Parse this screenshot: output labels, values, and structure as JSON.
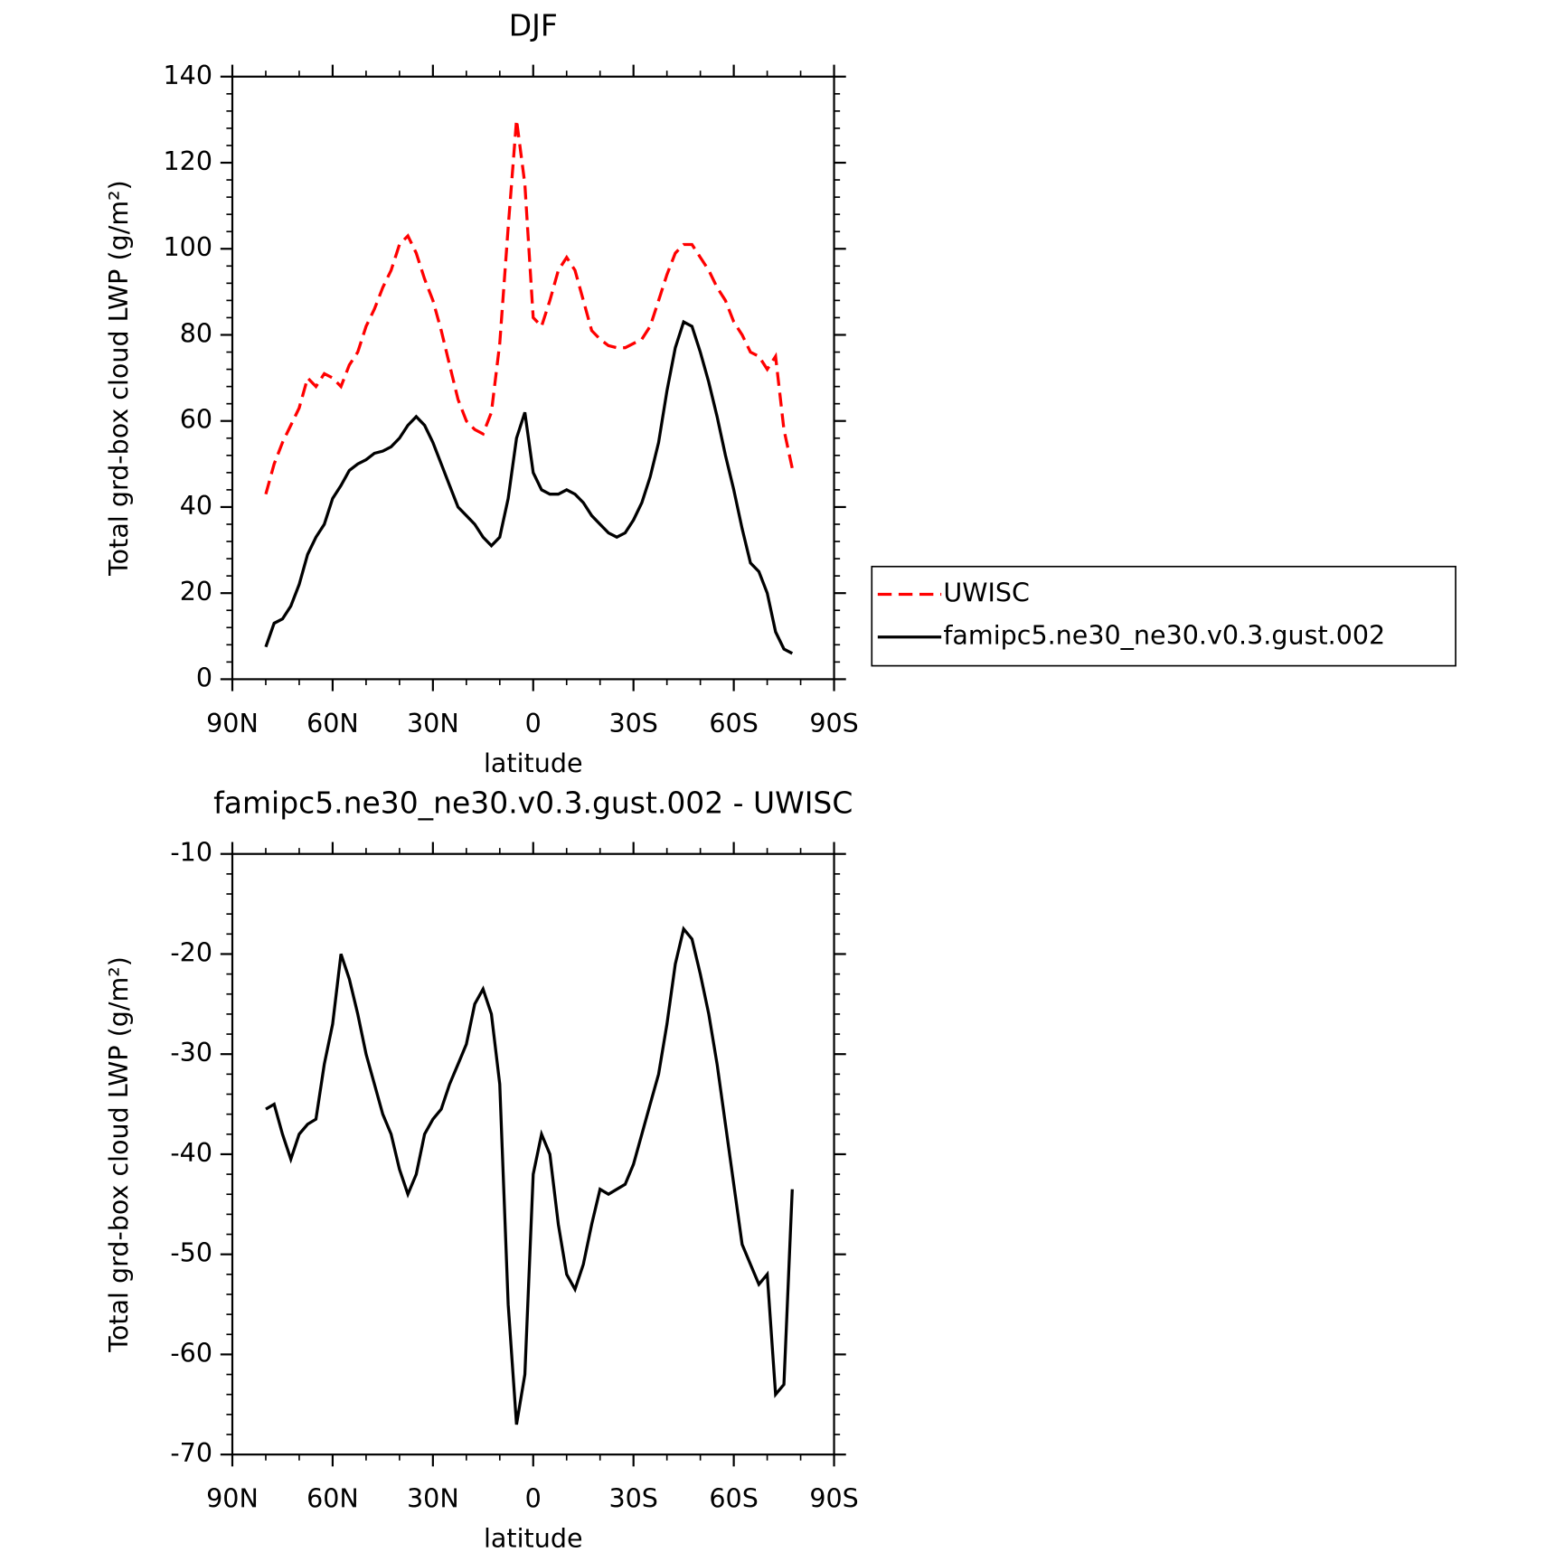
{
  "chart_data": [
    {
      "type": "line",
      "title": "DJF",
      "xlabel": "latitude",
      "ylabel": "Total grd-box cloud LWP (g/m²)",
      "x": [
        80,
        77.5,
        75,
        72.5,
        70,
        67.5,
        65,
        62.5,
        60,
        57.5,
        55,
        52.5,
        50,
        47.5,
        45,
        42.5,
        40,
        37.5,
        35,
        32.5,
        30,
        27.5,
        25,
        22.5,
        20,
        17.5,
        15,
        12.5,
        10,
        7.5,
        5,
        2.5,
        0,
        -2.5,
        -5,
        -7.5,
        -10,
        -12.5,
        -15,
        -17.5,
        -20,
        -22.5,
        -25,
        -27.5,
        -30,
        -32.5,
        -35,
        -37.5,
        -40,
        -42.5,
        -45,
        -47.5,
        -50,
        -52.5,
        -55,
        -57.5,
        -60,
        -62.5,
        -65,
        -67.5,
        -70,
        -72.5,
        -75,
        -77.5
      ],
      "series": [
        {
          "name": "UWISC",
          "color": "#ff0000",
          "linestyle": "dashed",
          "values": [
            43,
            50,
            55,
            59,
            63,
            70,
            68,
            71,
            70,
            68,
            73,
            76,
            82,
            86,
            91,
            95,
            101,
            103,
            99,
            93,
            88,
            81,
            73,
            65,
            60,
            58,
            57,
            62,
            78,
            105,
            130,
            115,
            84,
            82,
            88,
            95,
            98,
            95,
            88,
            81,
            79,
            77.5,
            77,
            77,
            78,
            79,
            82,
            88,
            94,
            99,
            101,
            101,
            98,
            95,
            91,
            88,
            83,
            80,
            76,
            75,
            72,
            75,
            58,
            49
          ]
        },
        {
          "name": "famipc5.ne30_ne30.v0.3.gust.002",
          "color": "#000000",
          "linestyle": "solid",
          "values": [
            7.5,
            13,
            14,
            17,
            22,
            29,
            33,
            36,
            42,
            45,
            48.5,
            50,
            51,
            52.5,
            53,
            54,
            56,
            59,
            61,
            59,
            55,
            50,
            45,
            40,
            38,
            36,
            33,
            31,
            33,
            42,
            56,
            62,
            48,
            44,
            43,
            43,
            44,
            43,
            41,
            38,
            36,
            34,
            33,
            34,
            37,
            41,
            47,
            55,
            67,
            77,
            83,
            82,
            76,
            69,
            61,
            52,
            44,
            35,
            27,
            25,
            20,
            11,
            7,
            6
          ]
        }
      ],
      "xlim": [
        90,
        -90
      ],
      "xticks": [
        {
          "value": 90,
          "label": "90N"
        },
        {
          "value": 60,
          "label": "60N"
        },
        {
          "value": 30,
          "label": "30N"
        },
        0,
        {
          "value": -30,
          "label": "30S"
        },
        {
          "value": -60,
          "label": "60S"
        },
        {
          "value": -90,
          "label": "90S"
        }
      ],
      "ylim": [
        0,
        140
      ],
      "yticks": [
        0,
        20,
        40,
        60,
        80,
        100,
        120,
        140
      ],
      "legend": "right"
    },
    {
      "type": "line",
      "title": "famipc5.ne30_ne30.v0.3.gust.002 - UWISC",
      "xlabel": "latitude",
      "ylabel": "Total grd-box cloud LWP (g/m²)",
      "x": [
        80,
        77.5,
        75,
        72.5,
        70,
        67.5,
        65,
        62.5,
        60,
        57.5,
        55,
        52.5,
        50,
        47.5,
        45,
        42.5,
        40,
        37.5,
        35,
        32.5,
        30,
        27.5,
        25,
        22.5,
        20,
        17.5,
        15,
        12.5,
        10,
        7.5,
        5,
        2.5,
        0,
        -2.5,
        -5,
        -7.5,
        -10,
        -12.5,
        -15,
        -17.5,
        -20,
        -22.5,
        -25,
        -27.5,
        -30,
        -32.5,
        -35,
        -37.5,
        -40,
        -42.5,
        -45,
        -47.5,
        -50,
        -52.5,
        -55,
        -57.5,
        -60,
        -62.5,
        -65,
        -67.5,
        -70,
        -72.5,
        -75,
        -77.5
      ],
      "series": [
        {
          "color": "#000000",
          "linestyle": "solid",
          "values": [
            -35.5,
            -35,
            -38,
            -40.5,
            -38,
            -37,
            -36.5,
            -31,
            -27,
            -20,
            -22.5,
            -26,
            -30,
            -33,
            -36,
            -38,
            -41.5,
            -44,
            -42,
            -38,
            -36.5,
            -35.5,
            -33,
            -31,
            -29,
            -25,
            -23.5,
            -26,
            -33,
            -55,
            -67,
            -62,
            -42,
            -38,
            -40,
            -47,
            -52,
            -53.5,
            -51,
            -47,
            -43.5,
            -44,
            -43.5,
            -43,
            -41,
            -38,
            -35,
            -32,
            -27,
            -21,
            -17.5,
            -18.5,
            -22,
            -26,
            -31,
            -37,
            -43,
            -49,
            -51,
            -53,
            -52,
            -64,
            -63,
            -43.5
          ]
        }
      ],
      "xlim": [
        90,
        -90
      ],
      "xticks": [
        {
          "value": 90,
          "label": "90N"
        },
        {
          "value": 60,
          "label": "60N"
        },
        {
          "value": 30,
          "label": "30N"
        },
        0,
        {
          "value": -30,
          "label": "30S"
        },
        {
          "value": -60,
          "label": "60S"
        },
        {
          "value": -90,
          "label": "90S"
        }
      ],
      "ylim": [
        -70,
        -10
      ],
      "yticks": [
        -70,
        -60,
        -50,
        -40,
        -30,
        -20,
        -10
      ]
    }
  ]
}
